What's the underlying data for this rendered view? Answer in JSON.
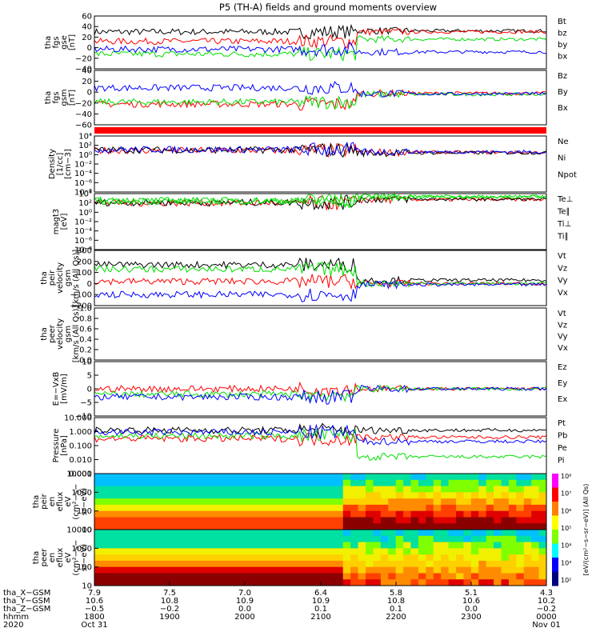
{
  "title": "P5 (TH-A) fields and ground moments overview",
  "colors": {
    "black": "#000000",
    "red": "#ff0000",
    "green": "#00e000",
    "blue": "#0000ff",
    "flag": "#ff0000"
  },
  "chart_data": [
    {
      "type": "line",
      "id": "fgs1",
      "ylabel": [
        "tha",
        "fgs",
        "gse",
        "[nT]"
      ],
      "yticks": [
        "60",
        "40",
        "20",
        "0",
        "−20",
        "−40"
      ],
      "ylim": [
        -40,
        60
      ],
      "series": [
        {
          "name": "Bt",
          "color": "black",
          "pre": 30,
          "post": 32
        },
        {
          "name": "bz",
          "color": "red",
          "pre": 12,
          "post": 30
        },
        {
          "name": "by",
          "color": "green",
          "pre": -12,
          "post": 16
        },
        {
          "name": "bx",
          "color": "blue",
          "pre": -3,
          "post": -8
        }
      ]
    },
    {
      "type": "line",
      "id": "fgs2",
      "ylabel": [
        "tha",
        "fgs",
        "gsm",
        "[nT]"
      ],
      "yticks": [
        "40",
        "20",
        "0",
        "−20",
        "−40",
        "−60"
      ],
      "ylim": [
        -60,
        40
      ],
      "series": [
        {
          "name": "Bz",
          "color": "red",
          "pre": -22,
          "post": -2
        },
        {
          "name": "By",
          "color": "green",
          "pre": -18,
          "post": -4
        },
        {
          "name": "Bx",
          "color": "blue",
          "pre": 8,
          "post": -3
        }
      ]
    },
    {
      "type": "line",
      "id": "density",
      "ylabel": [
        "Density",
        "[1/cc]",
        "[cm−3]"
      ],
      "yticks": [
        "10⁴",
        "10²",
        "10⁰",
        "10⁻²",
        "10⁻⁴",
        "10⁻⁶",
        "10⁻⁸"
      ],
      "ylim": [
        -8,
        4
      ],
      "log": true,
      "series": [
        {
          "name": "Ne",
          "color": "red",
          "pre": 0.9,
          "post": 0.5
        },
        {
          "name": "Ni",
          "color": "black",
          "pre": 1.0,
          "post": 0.4
        },
        {
          "name": "Npot",
          "color": "blue",
          "pre": 1.1,
          "post": 0.6
        }
      ]
    },
    {
      "type": "line",
      "id": "temp",
      "ylabel": [
        "magt3",
        "[eV]"
      ],
      "yticks": [
        "10⁴",
        "10²",
        "10⁰",
        "10⁻²",
        "10⁻⁴",
        "10⁻⁶",
        "10⁻⁸"
      ],
      "ylim": [
        -8,
        4
      ],
      "log": true,
      "series": [
        {
          "name": "Te⊥",
          "color": "red",
          "pre": 2.0,
          "post": 2.7
        },
        {
          "name": "Te∥",
          "color": "black",
          "pre": 2.1,
          "post": 2.8
        },
        {
          "name": "Ti⊥",
          "color": "green",
          "pre": 2.4,
          "post": 3.3
        },
        {
          "name": "Ti∥",
          "color": "green",
          "pre": 2.5,
          "post": 3.4
        }
      ]
    },
    {
      "type": "line",
      "id": "peir",
      "ylabel": [
        "tha",
        "peir",
        "velocity",
        "gsm",
        "[km/s (All Qs)]"
      ],
      "yticks": [
        "300",
        "200",
        "100",
        "0",
        "−100",
        "−200"
      ],
      "ylim": [
        -200,
        300
      ],
      "series": [
        {
          "name": "Vt",
          "color": "black",
          "pre": 170,
          "post": 30
        },
        {
          "name": "Vz",
          "color": "red",
          "pre": 20,
          "post": 0
        },
        {
          "name": "Vy",
          "color": "green",
          "pre": 130,
          "post": 0
        },
        {
          "name": "Vx",
          "color": "blue",
          "pre": -100,
          "post": -10
        }
      ]
    },
    {
      "type": "line",
      "id": "peer",
      "ylabel": [
        "tha",
        "peer",
        "velocity",
        "gsm",
        "[km/s (All Qs)]"
      ],
      "yticks": [
        "1.0",
        "0.8",
        "0.6",
        "0.4",
        "0.2",
        "0.0"
      ],
      "ylim": [
        0,
        1
      ],
      "series": [
        {
          "name": "Vt",
          "color": "black"
        },
        {
          "name": "Vz",
          "color": "red"
        },
        {
          "name": "Vy",
          "color": "green"
        },
        {
          "name": "Vx",
          "color": "blue"
        }
      ]
    },
    {
      "type": "line",
      "id": "efield",
      "ylabel": [
        "E=−VxB",
        "[mV/m]"
      ],
      "yticks": [
        "10",
        "5",
        "0",
        "−5",
        "−10"
      ],
      "ylim": [
        -10,
        10
      ],
      "series": [
        {
          "name": "Ez",
          "color": "red",
          "pre": 0,
          "post": 0
        },
        {
          "name": "Ey",
          "color": "green",
          "pre": -2,
          "post": 0
        },
        {
          "name": "Ex",
          "color": "blue",
          "pre": -3,
          "post": 0
        }
      ]
    },
    {
      "type": "line",
      "id": "pressure",
      "ylabel": [
        "Pressure",
        "[nPa]"
      ],
      "yticks": [
        "10.000",
        "1.000",
        "0.100",
        "0.010",
        "0.001"
      ],
      "ylim": [
        -3,
        1
      ],
      "log": true,
      "series": [
        {
          "name": "Pt",
          "color": "black",
          "pre": 0.1,
          "post": 0.1
        },
        {
          "name": "Pb",
          "color": "red",
          "pre": -0.5,
          "post": -0.4
        },
        {
          "name": "Pe",
          "color": "green",
          "pre": -0.3,
          "post": -1.8
        },
        {
          "name": "Pi",
          "color": "blue",
          "pre": -0.05,
          "post": -0.7
        }
      ]
    },
    {
      "type": "heatmap",
      "id": "peir_en",
      "ylabel": [
        "tha",
        "peir",
        "en",
        "eflux",
        "eV",
        "(cm²−s−",
        "sr−eV)"
      ],
      "yticks": [
        "10000",
        "1000",
        "100",
        "10"
      ]
    },
    {
      "type": "heatmap",
      "id": "peer_en",
      "ylabel": [
        "tha",
        "peer",
        "en",
        "eflux",
        "eV",
        "(cm²−s−",
        "sr−eV)"
      ],
      "yticks": [
        "10000",
        "1000",
        "100",
        "10"
      ]
    }
  ],
  "colorbar": {
    "labels": [
      "10⁸",
      "10⁷",
      "10⁶",
      "10⁵",
      "10⁴",
      "10³",
      "10²"
    ],
    "unit": "[eV/(cm²−s−sr−eV)] (All Qs)"
  },
  "xaxis": {
    "rows": [
      {
        "label": "tha_X−GSM",
        "values": [
          "7.9",
          "7.5",
          "7.0",
          "6.4",
          "5.8",
          "5.1",
          "4.3"
        ]
      },
      {
        "label": "tha_Y−GSM",
        "values": [
          "10.6",
          "10.8",
          "10.9",
          "10.9",
          "10.8",
          "10.6",
          "10.2"
        ]
      },
      {
        "label": "tha_Z−GSM",
        "values": [
          "−0.5",
          "−0.2",
          "0.0",
          "0.1",
          "0.1",
          "0.0",
          "−0.2"
        ]
      },
      {
        "label": "hhmm",
        "values": [
          "1800",
          "1900",
          "2000",
          "2100",
          "2200",
          "2300",
          "0000"
        ]
      }
    ],
    "year": "2020",
    "date_start": "Oct 31",
    "date_end": "Nov 01"
  }
}
